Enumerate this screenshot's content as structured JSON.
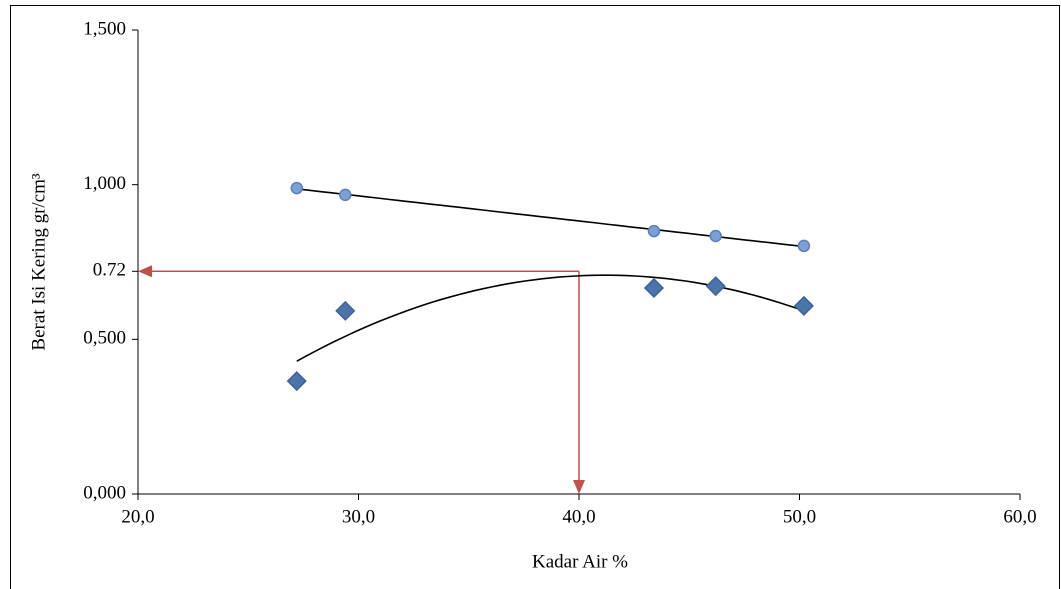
{
  "chart_data": {
    "type": "scatter",
    "xlabel": "Kadar Air  %",
    "ylabel": "Berat Isi Kering  gr/cm³",
    "xlim": [
      20,
      60
    ],
    "xticks": [
      {
        "value": 20,
        "label": "20,0"
      },
      {
        "value": 30,
        "label": "30,0"
      },
      {
        "value": 40,
        "label": "40,0"
      },
      {
        "value": 50,
        "label": "50,0"
      },
      {
        "value": 60,
        "label": "60,0"
      }
    ],
    "ylim": [
      0,
      1.5
    ],
    "yticks": [
      {
        "value": 0,
        "label": "0,000"
      },
      {
        "value": 0.5,
        "label": "0,500"
      },
      0.72,
      {
        "value": 1,
        "label": "1,000"
      },
      {
        "value": 1.5,
        "label": "1,500"
      }
    ],
    "series": [
      {
        "marker": "circle",
        "color": "#7c9fd6",
        "edge": "#5b80bb",
        "trend": "linear",
        "x": [
          27.2,
          29.4,
          43.4,
          46.2,
          50.2
        ],
        "values": [
          0.989,
          0.967,
          0.85,
          0.834,
          0.802
        ]
      },
      {
        "marker": "diamond",
        "color": "#4a74aa",
        "edge": "#3d6395",
        "trend": "poly2",
        "x": [
          27.2,
          29.4,
          43.4,
          46.2,
          50.2
        ],
        "values": [
          0.365,
          0.592,
          0.666,
          0.672,
          0.608
        ]
      }
    ],
    "annotation": {
      "x": 40,
      "y": 0.72,
      "color": "#c0504d"
    }
  }
}
